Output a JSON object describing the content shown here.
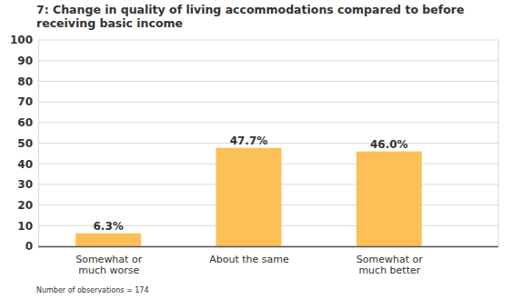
{
  "chart_data": {
    "type": "bar",
    "title": "7: Change in quality of living accommodations compared to before receiving basic income",
    "categories": [
      "Somewhat or much worse",
      "About the same",
      "Somewhat or much better"
    ],
    "values": [
      6.3,
      47.7,
      46.0
    ],
    "value_labels": [
      "6.3%",
      "47.7%",
      "46.0%"
    ],
    "data_labels": true,
    "color": "#fdbf57",
    "ylim": [
      0,
      100
    ],
    "yticks": [
      0,
      10,
      20,
      30,
      40,
      50,
      60,
      70,
      80,
      90,
      100
    ],
    "grid": true,
    "note": "Number of observations = 174"
  }
}
